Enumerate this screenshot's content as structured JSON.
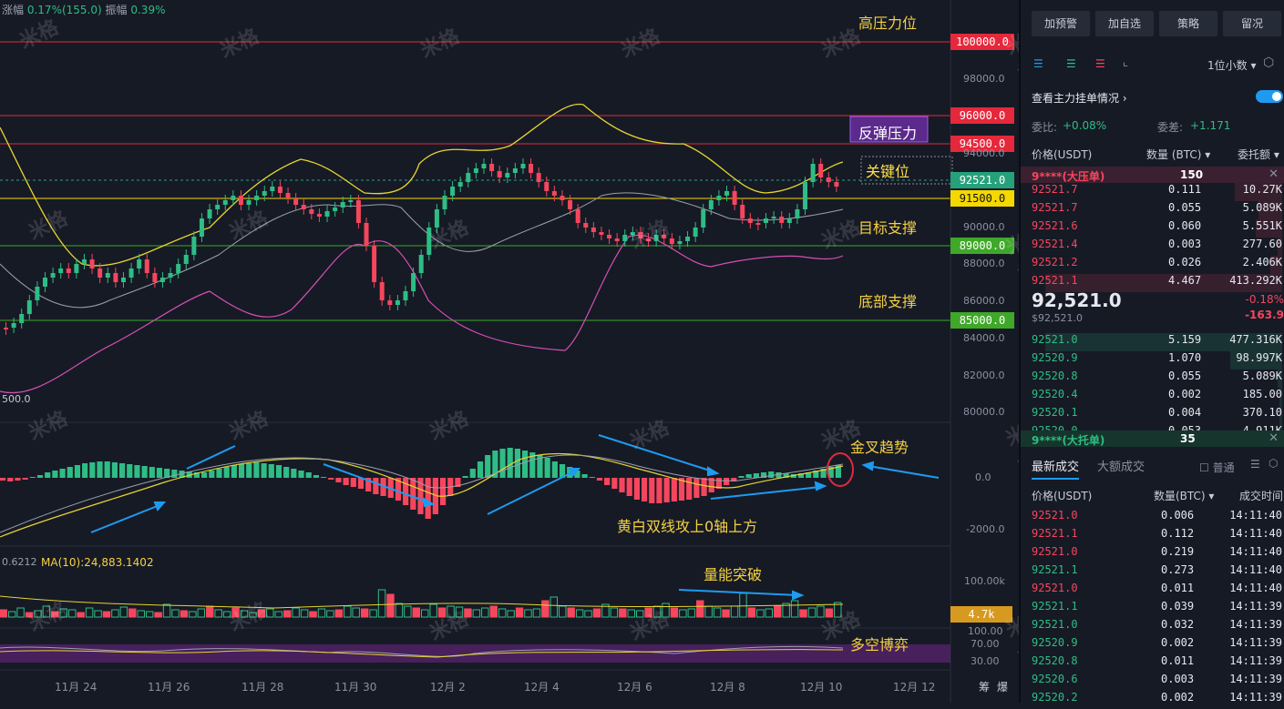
{
  "chart": {
    "top_info": {
      "change_label": "涨幅",
      "change_value": "0.17%(155.0)",
      "amplitude_label": "振幅",
      "amplitude_value": "0.39%"
    },
    "annotations": {
      "high_pressure": "高压力位",
      "rebound_pressure": "反弹压力",
      "key_level": "关键位",
      "target_support": "目标支撑",
      "bottom_support": "底部支撑",
      "golden_cross": "金叉趋势",
      "yellow_white": "黄白双线攻上0轴上方",
      "volume_break": "量能突破",
      "bull_bear": "多空博弈"
    },
    "price_tags": [
      {
        "label": "100000.0",
        "color": "#e5283b"
      },
      {
        "label": "96000.0",
        "color": "#e5283b"
      },
      {
        "label": "94500.0",
        "color": "#e5283b"
      },
      {
        "label": "92521.0",
        "color": "#26a17b"
      },
      {
        "label": "91500.0",
        "color": "#f5d800"
      },
      {
        "label": "89000.0",
        "color": "#3fa829"
      },
      {
        "label": "85000.0",
        "color": "#3fa829"
      }
    ],
    "price_axis": [
      "98000.0",
      "94000.0",
      "90000.0",
      "88000.0",
      "86000.0",
      "84000.0",
      "82000.0",
      "80000.0"
    ],
    "low_label": "500.0",
    "macd_axis": [
      "0.0",
      "-2000.0"
    ],
    "volume_ma_text": "0.6212",
    "volume_ma10": "MA(10):24,883.1402",
    "volume_axis": "100.00k",
    "volume_tag": "4.7k",
    "rsi_axis": [
      "100.00",
      "70.00",
      "30.00"
    ],
    "dates": [
      "11月 24",
      "11月 26",
      "11月 28",
      "11月 30",
      "12月 2",
      "12月 4",
      "12月 6",
      "12月 8",
      "12月 10",
      "12月 12"
    ],
    "bottom_right": [
      "筹",
      "爆"
    ],
    "watermark": "米格"
  },
  "panel": {
    "buttons": [
      "加预警",
      "加自选",
      "策略",
      "留况"
    ],
    "decimal": "1位小数",
    "main_order_label": "查看主力挂单情况",
    "ratio_label": "委比:",
    "ratio_value": "+0.08%",
    "diff_label": "委差:",
    "diff_value": "+1.171",
    "headers": {
      "price": "价格(USDT)",
      "qty": "数量 (BTC)",
      "total": "委托额"
    },
    "big_ask": {
      "label": "9****(大压单)",
      "qty": "150"
    },
    "asks": [
      {
        "price": "92521.7",
        "qty": "0.111",
        "total": "10.27K"
      },
      {
        "price": "92521.7",
        "qty": "0.055",
        "total": "5.089K"
      },
      {
        "price": "92521.6",
        "qty": "0.060",
        "total": "5.551K"
      },
      {
        "price": "92521.4",
        "qty": "0.003",
        "total": "277.60"
      },
      {
        "price": "92521.2",
        "qty": "0.026",
        "total": "2.406K"
      },
      {
        "price": "92521.1",
        "qty": "4.467",
        "total": "413.292K"
      }
    ],
    "last_price": "92,521.0",
    "last_price_usd": "$92,521.0",
    "change_pct": "-0.18%",
    "change_abs": "-163.9",
    "bids": [
      {
        "price": "92521.0",
        "qty": "5.159",
        "total": "477.316K"
      },
      {
        "price": "92520.9",
        "qty": "1.070",
        "total": "98.997K"
      },
      {
        "price": "92520.8",
        "qty": "0.055",
        "total": "5.089K"
      },
      {
        "price": "92520.4",
        "qty": "0.002",
        "total": "185.00"
      },
      {
        "price": "92520.1",
        "qty": "0.004",
        "total": "370.10"
      },
      {
        "price": "92520.0",
        "qty": "0.053",
        "total": "4.911K"
      }
    ],
    "big_bid": {
      "label": "9****(大托单)",
      "qty": "35"
    },
    "trade_tabs": [
      "最新成交",
      "大额成交"
    ],
    "normal_label": "普通",
    "trade_headers": {
      "price": "价格(USDT)",
      "qty": "数量(BTC)",
      "time": "成交时间"
    },
    "trades": [
      {
        "price": "92521.0",
        "qty": "0.006",
        "time": "14:11:40",
        "side": "sell"
      },
      {
        "price": "92521.1",
        "qty": "0.112",
        "time": "14:11:40",
        "side": "sell"
      },
      {
        "price": "92521.0",
        "qty": "0.219",
        "time": "14:11:40",
        "side": "sell"
      },
      {
        "price": "92521.1",
        "qty": "0.273",
        "time": "14:11:40",
        "side": "buy"
      },
      {
        "price": "92521.0",
        "qty": "0.011",
        "time": "14:11:40",
        "side": "sell"
      },
      {
        "price": "92521.1",
        "qty": "0.039",
        "time": "14:11:39",
        "side": "buy"
      },
      {
        "price": "92521.0",
        "qty": "0.032",
        "time": "14:11:39",
        "side": "buy"
      },
      {
        "price": "92520.9",
        "qty": "0.002",
        "time": "14:11:39",
        "side": "buy"
      },
      {
        "price": "92520.8",
        "qty": "0.011",
        "time": "14:11:39",
        "side": "buy"
      },
      {
        "price": "92520.6",
        "qty": "0.003",
        "time": "14:11:39",
        "side": "buy"
      },
      {
        "price": "92520.2",
        "qty": "0.002",
        "time": "14:11:39",
        "side": "buy"
      }
    ]
  }
}
